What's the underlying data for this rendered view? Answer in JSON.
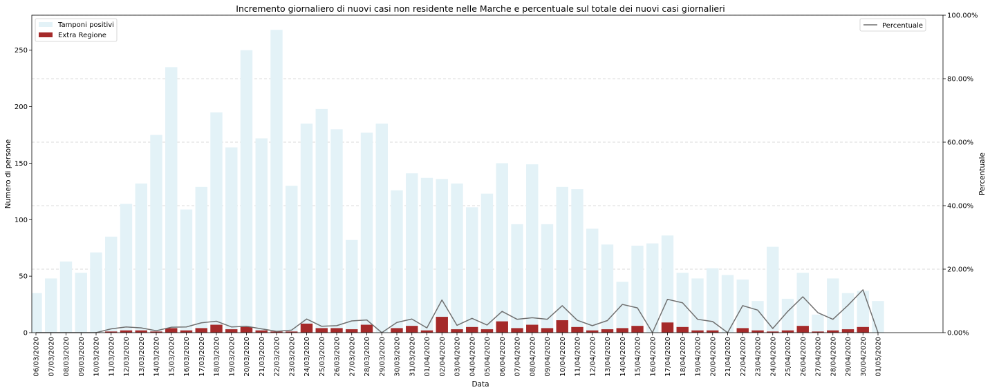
{
  "chart_data": {
    "type": "bar",
    "title": "Incremento giornaliero di nuovi casi non residente nelle Marche e percentuale sul totale dei nuovi casi giornalieri",
    "xlabel": "Data",
    "ylabel": "Numero di persone",
    "y2label": "Percentuale",
    "ylim": [
      0,
      281
    ],
    "y2lim": [
      0,
      100
    ],
    "yticks": [
      "0",
      "50",
      "100",
      "150",
      "200",
      "250"
    ],
    "y2ticks": [
      "0.00%",
      "20.00%",
      "40.00%",
      "60.00%",
      "80.00%",
      "100.00%"
    ],
    "grid": "dashed horizontal, right axis",
    "legend_left_placement": "top-left",
    "legend_right_placement": "top-right",
    "categories": [
      "06/03/2020",
      "07/03/2020",
      "08/03/2020",
      "09/03/2020",
      "10/03/2020",
      "11/03/2020",
      "12/03/2020",
      "13/03/2020",
      "14/03/2020",
      "15/03/2020",
      "16/03/2020",
      "17/03/2020",
      "18/03/2020",
      "19/03/2020",
      "20/03/2020",
      "21/03/2020",
      "22/03/2020",
      "23/03/2020",
      "24/03/2020",
      "25/03/2020",
      "26/03/2020",
      "27/03/2020",
      "28/03/2020",
      "29/03/2020",
      "30/03/2020",
      "31/03/2020",
      "01/04/2020",
      "02/04/2020",
      "03/04/2020",
      "04/04/2020",
      "05/04/2020",
      "06/04/2020",
      "07/04/2020",
      "08/04/2020",
      "09/04/2020",
      "10/04/2020",
      "11/04/2020",
      "12/04/2020",
      "13/04/2020",
      "14/04/2020",
      "15/04/2020",
      "16/04/2020",
      "17/04/2020",
      "18/04/2020",
      "19/04/2020",
      "20/04/2020",
      "21/04/2020",
      "22/04/2020",
      "23/04/2020",
      "24/04/2020",
      "25/04/2020",
      "26/04/2020",
      "27/04/2020",
      "28/04/2020",
      "29/04/2020",
      "30/04/2020",
      "01/05/2020"
    ],
    "series": [
      {
        "name": "Tamponi positivi",
        "kind": "bar",
        "axis": "left",
        "color": "#e3f2f7",
        "values": [
          35,
          48,
          63,
          53,
          71,
          85,
          114,
          132,
          175,
          235,
          109,
          129,
          195,
          164,
          250,
          172,
          268,
          130,
          185,
          198,
          180,
          82,
          177,
          185,
          126,
          141,
          137,
          136,
          132,
          111,
          123,
          150,
          96,
          149,
          96,
          129,
          127,
          92,
          78,
          45,
          77,
          79,
          86,
          53,
          48,
          57,
          51,
          47,
          28,
          76,
          30,
          53,
          16,
          48,
          35,
          37,
          28
        ]
      },
      {
        "name": "Extra Regione",
        "kind": "bar",
        "axis": "left",
        "color": "#a52a2a",
        "values": [
          0,
          0,
          0,
          0,
          0,
          1,
          2,
          2,
          1,
          4,
          2,
          4,
          7,
          3,
          5,
          2,
          1,
          1,
          8,
          4,
          4,
          3,
          7,
          0,
          4,
          6,
          2,
          14,
          3,
          5,
          3,
          10,
          4,
          7,
          4,
          11,
          5,
          2,
          3,
          4,
          6,
          0,
          9,
          5,
          2,
          2,
          0,
          4,
          2,
          1,
          2,
          6,
          1,
          2,
          3,
          5,
          0
        ]
      },
      {
        "name": "Percentuale",
        "kind": "line",
        "axis": "right",
        "color": "#707070",
        "values": [
          0,
          0,
          0,
          0,
          0,
          1.2,
          1.8,
          1.5,
          0.6,
          1.7,
          1.8,
          3.1,
          3.6,
          1.8,
          2.0,
          1.2,
          0.4,
          0.8,
          4.3,
          2.0,
          2.2,
          3.7,
          4.0,
          0,
          3.2,
          4.3,
          1.5,
          10.3,
          2.3,
          4.5,
          2.4,
          6.7,
          4.2,
          4.7,
          4.2,
          8.5,
          3.9,
          2.2,
          3.8,
          8.9,
          7.8,
          0,
          10.5,
          9.4,
          4.2,
          3.5,
          0,
          8.5,
          7.1,
          1.3,
          6.7,
          11.3,
          6.3,
          4.2,
          8.6,
          13.5,
          0
        ]
      }
    ]
  }
}
